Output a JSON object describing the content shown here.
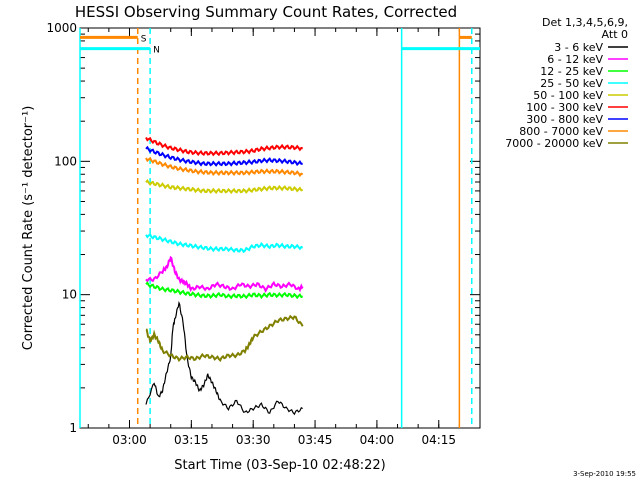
{
  "chart_data": {
    "type": "line",
    "title": "HESSI Observing Summary Count Rates, Corrected",
    "xlabel": "Start Time (03-Sep-10 02:48:22)",
    "ylabel": "Corrected Count Rate (s⁻¹ detector⁻¹)",
    "yscale": "log",
    "ylim": [
      1,
      1000
    ],
    "xlim_minutes": [
      0,
      97
    ],
    "x_tick_labels": [
      {
        "minute": 12,
        "label": "03:00"
      },
      {
        "minute": 27,
        "label": "03:15"
      },
      {
        "minute": 42,
        "label": "03:30"
      },
      {
        "minute": 57,
        "label": "03:45"
      },
      {
        "minute": 72,
        "label": "04:00"
      },
      {
        "minute": 87,
        "label": "04:15"
      }
    ],
    "y_tick_labels": [
      "1",
      "10",
      "100",
      "1000"
    ],
    "legend_header": [
      "Det 1,3,4,5,6,9,",
      "Att 0"
    ],
    "series": [
      {
        "name": "3 - 6 keV",
        "color": "#000000",
        "x": [
          16,
          18,
          19,
          20,
          21,
          22,
          22.5,
          23,
          24,
          25,
          26,
          27,
          28,
          29,
          30,
          31,
          32,
          33,
          34,
          36,
          38,
          40,
          42,
          44,
          46,
          48,
          50,
          52,
          54
        ],
        "y": [
          1.5,
          2.2,
          1.7,
          1.9,
          2.6,
          3.4,
          5.6,
          6.5,
          8.7,
          6.2,
          3.3,
          2.4,
          2.2,
          1.9,
          2.1,
          2.5,
          2.2,
          1.9,
          1.6,
          1.4,
          1.6,
          1.3,
          1.4,
          1.5,
          1.3,
          1.6,
          1.4,
          1.3,
          1.4
        ]
      },
      {
        "name": "6 - 12 keV",
        "color": "#ff00ff",
        "x": [
          16,
          18,
          20,
          21,
          22,
          23,
          24,
          25,
          26,
          27,
          29,
          31,
          33,
          35,
          37,
          39,
          41,
          43,
          45,
          47,
          49,
          51,
          53,
          54
        ],
        "y": [
          13.0,
          13.0,
          15.0,
          16.0,
          19.0,
          15.0,
          13.0,
          12.5,
          12.0,
          11.0,
          11.5,
          11.0,
          12.0,
          11.5,
          11.0,
          12.0,
          11.5,
          12.0,
          11.0,
          12.0,
          11.5,
          12.0,
          11.0,
          11.5
        ]
      },
      {
        "name": "12 - 25 keV",
        "color": "#00ff00",
        "x": [
          16,
          18,
          20,
          22,
          24,
          26,
          28,
          30,
          32,
          34,
          36,
          38,
          40,
          42,
          44,
          46,
          48,
          50,
          52,
          54
        ],
        "y": [
          12.0,
          11.5,
          11.0,
          10.8,
          10.5,
          10.2,
          10.0,
          9.8,
          9.8,
          10.0,
          9.7,
          9.8,
          9.7,
          10.0,
          9.8,
          10.0,
          9.9,
          10.0,
          9.8,
          9.7
        ]
      },
      {
        "name": "25 - 50 keV",
        "color": "#00ffff",
        "x": [
          16,
          18,
          20,
          22,
          24,
          26,
          28,
          30,
          32,
          34,
          36,
          38,
          40,
          42,
          44,
          46,
          48,
          50,
          52,
          54
        ],
        "y": [
          28.0,
          27.0,
          26.0,
          25.0,
          24.0,
          23.5,
          23.0,
          22.5,
          22.0,
          22.0,
          22.0,
          21.5,
          21.5,
          23.0,
          23.5,
          23.0,
          23.5,
          23.0,
          23.0,
          22.5
        ]
      },
      {
        "name": "50 - 100 keV",
        "color": "#cccc00",
        "x": [
          16,
          18,
          20,
          22,
          24,
          26,
          28,
          30,
          32,
          34,
          36,
          38,
          40,
          42,
          44,
          46,
          48,
          50,
          52,
          54
        ],
        "y": [
          70.0,
          68.0,
          66.0,
          64.0,
          63.0,
          62.0,
          61.0,
          60.0,
          60.0,
          60.0,
          60.0,
          60.0,
          60.0,
          61.0,
          62.0,
          63.0,
          63.0,
          63.0,
          62.0,
          61.0
        ]
      },
      {
        "name": "100 - 300 keV",
        "color": "#ff0000",
        "x": [
          16,
          18,
          20,
          22,
          24,
          26,
          28,
          30,
          32,
          34,
          36,
          38,
          40,
          42,
          44,
          46,
          48,
          50,
          52,
          54
        ],
        "y": [
          150.0,
          140.0,
          132.0,
          126.0,
          122.0,
          118.0,
          116.0,
          115.0,
          115.0,
          115.0,
          116.0,
          117.0,
          118.0,
          120.0,
          124.0,
          126.0,
          128.0,
          128.0,
          127.0,
          125.0
        ]
      },
      {
        "name": "300 - 800 keV",
        "color": "#0000ff",
        "x": [
          16,
          18,
          20,
          22,
          24,
          26,
          28,
          30,
          32,
          34,
          36,
          38,
          40,
          42,
          44,
          46,
          48,
          50,
          52,
          54
        ],
        "y": [
          125.0,
          118.0,
          112.0,
          107.0,
          103.0,
          100.0,
          98.0,
          96.0,
          96.0,
          96.0,
          96.0,
          97.0,
          98.0,
          99.0,
          101.0,
          102.0,
          101.0,
          100.0,
          98.0,
          96.0
        ]
      },
      {
        "name": "800 - 7000 keV",
        "color": "#ff8800",
        "x": [
          16,
          18,
          20,
          22,
          24,
          26,
          28,
          30,
          32,
          34,
          36,
          38,
          40,
          42,
          44,
          46,
          48,
          50,
          52,
          54
        ],
        "y": [
          105.0,
          100.0,
          95.0,
          91.0,
          88.0,
          86.0,
          84.0,
          83.0,
          82.0,
          82.0,
          82.0,
          82.0,
          82.0,
          83.0,
          84.0,
          84.0,
          84.0,
          83.0,
          82.0,
          80.0
        ]
      },
      {
        "name": "7000 - 20000 keV",
        "color": "#808000",
        "x": [
          16,
          17,
          18,
          19,
          20,
          22,
          24,
          26,
          28,
          30,
          32,
          34,
          36,
          38,
          40,
          41,
          42,
          44,
          46,
          48,
          50,
          52,
          54
        ],
        "y": [
          5.5,
          4.5,
          5.0,
          4.5,
          3.8,
          3.5,
          3.3,
          3.4,
          3.3,
          3.5,
          3.4,
          3.3,
          3.5,
          3.5,
          3.8,
          4.2,
          4.8,
          5.3,
          5.8,
          6.4,
          6.6,
          6.8,
          5.8
        ]
      }
    ],
    "markers": [
      {
        "color": "#ff8800",
        "style": "dashed",
        "minute": 14
      },
      {
        "color": "#00ffff",
        "style": "dashed",
        "minute": 17
      },
      {
        "color": "#00ffff",
        "style": "solid",
        "minute": 0
      },
      {
        "color": "#00ffff",
        "style": "solid",
        "minute": 78
      },
      {
        "color": "#ff8800",
        "style": "solid",
        "minute": 92
      },
      {
        "color": "#00ffff",
        "style": "dashed",
        "minute": 95
      }
    ],
    "flag_bars": [
      {
        "label": "S",
        "color": "#ff8800",
        "segments": [
          [
            0,
            14
          ],
          [
            92,
            95
          ]
        ],
        "value": 850
      },
      {
        "label": "N",
        "color": "#00ffff",
        "segments": [
          [
            0,
            17
          ],
          [
            78,
            97
          ]
        ],
        "value": 700
      }
    ],
    "footer": "3-Sep-2010 19:55"
  }
}
